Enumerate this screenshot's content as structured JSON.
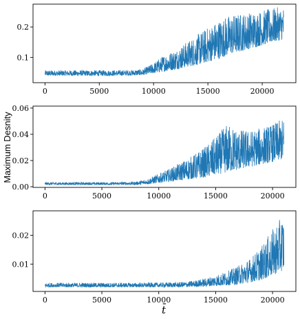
{
  "figure": {
    "ylabel": "Maximum Desnity",
    "xlabel": "t̄",
    "line_color": "#1f77b4"
  },
  "chart_data": [
    {
      "type": "line",
      "xlim": [
        -1100,
        23100
      ],
      "ylim": [
        0.017,
        0.275
      ],
      "xticks": [
        0,
        5000,
        10000,
        15000,
        20000
      ],
      "xtick_labels": [
        "0",
        "5000",
        "10000",
        "15000",
        "20000"
      ],
      "yticks": [
        0.1,
        0.2
      ],
      "ytick_labels": [
        "0.1",
        "0.2"
      ],
      "series": [
        {
          "color": "#1f77b4",
          "envelope_x": [
            0,
            2000,
            4000,
            6000,
            8000,
            9000,
            10000,
            11000,
            12000,
            13000,
            14000,
            15000,
            16000,
            17000,
            18000,
            19000,
            20000,
            21000,
            22000
          ],
          "envelope_low": [
            0.04,
            0.04,
            0.04,
            0.04,
            0.041,
            0.042,
            0.048,
            0.054,
            0.06,
            0.068,
            0.075,
            0.085,
            0.095,
            0.11,
            0.12,
            0.13,
            0.14,
            0.15,
            0.16
          ],
          "envelope_high": [
            0.058,
            0.058,
            0.058,
            0.058,
            0.059,
            0.062,
            0.082,
            0.11,
            0.125,
            0.15,
            0.175,
            0.2,
            0.225,
            0.24,
            0.245,
            0.25,
            0.255,
            0.262,
            0.268
          ]
        }
      ]
    },
    {
      "type": "line",
      "xlim": [
        -1050,
        22050
      ],
      "ylim": [
        -0.0005,
        0.0615
      ],
      "xticks": [
        0,
        5000,
        10000,
        15000,
        20000
      ],
      "xtick_labels": [
        "0",
        "5000",
        "10000",
        "15000",
        "20000"
      ],
      "yticks": [
        0.0,
        0.02,
        0.04,
        0.06
      ],
      "ytick_labels": [
        "0.00",
        "0.02",
        "0.04",
        "0.06"
      ],
      "series": [
        {
          "color": "#1f77b4",
          "envelope_x": [
            0,
            2000,
            4000,
            6000,
            8000,
            9000,
            10000,
            11000,
            12000,
            13000,
            14000,
            15000,
            16000,
            17000,
            18000,
            19000,
            20000,
            21000
          ],
          "envelope_low": [
            0.0015,
            0.0015,
            0.0015,
            0.0015,
            0.0015,
            0.002,
            0.003,
            0.004,
            0.005,
            0.006,
            0.007,
            0.009,
            0.011,
            0.013,
            0.015,
            0.017,
            0.019,
            0.021
          ],
          "envelope_high": [
            0.0035,
            0.0035,
            0.0035,
            0.0035,
            0.004,
            0.006,
            0.01,
            0.014,
            0.019,
            0.024,
            0.03,
            0.038,
            0.048,
            0.044,
            0.043,
            0.045,
            0.048,
            0.052
          ]
        }
      ]
    },
    {
      "type": "line",
      "xlim": [
        -1050,
        22050
      ],
      "ylim": [
        0.0005,
        0.0285
      ],
      "xticks": [
        0,
        5000,
        10000,
        15000,
        20000
      ],
      "xtick_labels": [
        "0",
        "5000",
        "10000",
        "15000",
        "20000"
      ],
      "yticks": [
        0.01,
        0.02
      ],
      "ytick_labels": [
        "0.01",
        "0.02"
      ],
      "series": [
        {
          "color": "#1f77b4",
          "envelope_x": [
            0,
            2000,
            4000,
            6000,
            8000,
            10000,
            12000,
            13000,
            14000,
            15000,
            16000,
            17000,
            18000,
            19000,
            20000,
            21000
          ],
          "envelope_low": [
            0.002,
            0.002,
            0.002,
            0.002,
            0.002,
            0.002,
            0.002,
            0.0021,
            0.0022,
            0.0024,
            0.0026,
            0.003,
            0.0036,
            0.0045,
            0.006,
            0.008
          ],
          "envelope_high": [
            0.0035,
            0.0035,
            0.0035,
            0.0035,
            0.0035,
            0.0036,
            0.0038,
            0.0042,
            0.005,
            0.0062,
            0.0075,
            0.0095,
            0.012,
            0.016,
            0.022,
            0.0275
          ]
        }
      ]
    }
  ]
}
